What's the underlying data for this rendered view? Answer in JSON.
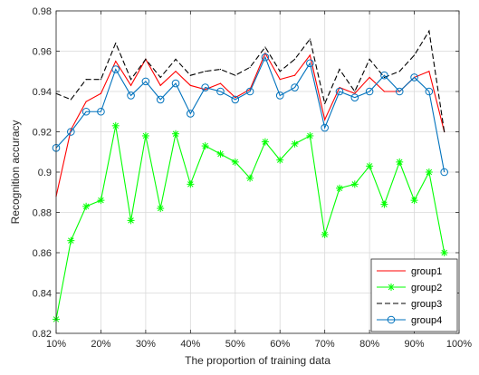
{
  "chart_data": {
    "type": "line",
    "title": "",
    "xlabel": "The proportion of training data",
    "ylabel": "Recognition accuracy",
    "xlim": [
      10,
      100
    ],
    "ylim": [
      0.82,
      0.98
    ],
    "x_ticks": [
      10,
      20,
      30,
      40,
      50,
      60,
      70,
      80,
      90,
      100
    ],
    "x_tick_labels": [
      "10%",
      "20%",
      "30%",
      "40%",
      "50%",
      "60%",
      "70%",
      "80%",
      "90%",
      "100%"
    ],
    "y_ticks": [
      0.82,
      0.84,
      0.86,
      0.88,
      0.9,
      0.92,
      0.94,
      0.96,
      0.98
    ],
    "y_tick_labels": [
      "0.82",
      "0.84",
      "0.86",
      "0.88",
      "0.9",
      "0.92",
      "0.94",
      "0.96",
      "0.98"
    ],
    "grid": true,
    "legend_position": "bottom-right",
    "x": [
      10,
      13.3,
      16.7,
      20,
      23.3,
      26.7,
      30,
      33.3,
      36.7,
      40,
      43.3,
      46.7,
      50,
      53.3,
      56.7,
      60,
      63.3,
      66.7,
      70,
      73.3,
      76.7,
      80,
      83.3,
      86.7,
      90,
      93.3,
      96.7
    ],
    "series": [
      {
        "name": "group1",
        "color": "#ff0000",
        "dash": "solid",
        "marker": "none",
        "values": [
          0.888,
          0.921,
          0.935,
          0.939,
          0.955,
          0.943,
          0.956,
          0.943,
          0.95,
          0.943,
          0.941,
          0.944,
          0.937,
          0.941,
          0.959,
          0.946,
          0.948,
          0.958,
          0.926,
          0.942,
          0.939,
          0.947,
          0.94,
          0.94,
          0.947,
          0.95,
          0.92
        ]
      },
      {
        "name": "group2",
        "color": "#00ff00",
        "dash": "solid",
        "marker": "star",
        "values": [
          0.827,
          0.866,
          0.883,
          0.886,
          0.923,
          0.876,
          0.918,
          0.882,
          0.919,
          0.894,
          0.913,
          0.909,
          0.905,
          0.897,
          0.915,
          0.906,
          0.914,
          0.918,
          0.869,
          0.892,
          0.894,
          0.903,
          0.884,
          0.905,
          0.886,
          0.9,
          0.86
        ]
      },
      {
        "name": "group3",
        "color": "#000000",
        "dash": "dashed",
        "marker": "none",
        "values": [
          0.939,
          0.936,
          0.946,
          0.946,
          0.964,
          0.946,
          0.956,
          0.947,
          0.956,
          0.948,
          0.95,
          0.951,
          0.948,
          0.952,
          0.962,
          0.95,
          0.956,
          0.966,
          0.934,
          0.951,
          0.94,
          0.956,
          0.947,
          0.95,
          0.958,
          0.97,
          0.92
        ]
      },
      {
        "name": "group4",
        "color": "#0072bd",
        "dash": "solid",
        "marker": "circle",
        "values": [
          0.912,
          0.92,
          0.93,
          0.93,
          0.951,
          0.938,
          0.945,
          0.936,
          0.944,
          0.929,
          0.942,
          0.94,
          0.936,
          0.94,
          0.957,
          0.938,
          0.942,
          0.954,
          0.922,
          0.94,
          0.937,
          0.94,
          0.948,
          0.94,
          0.947,
          0.94,
          0.9
        ]
      }
    ]
  }
}
